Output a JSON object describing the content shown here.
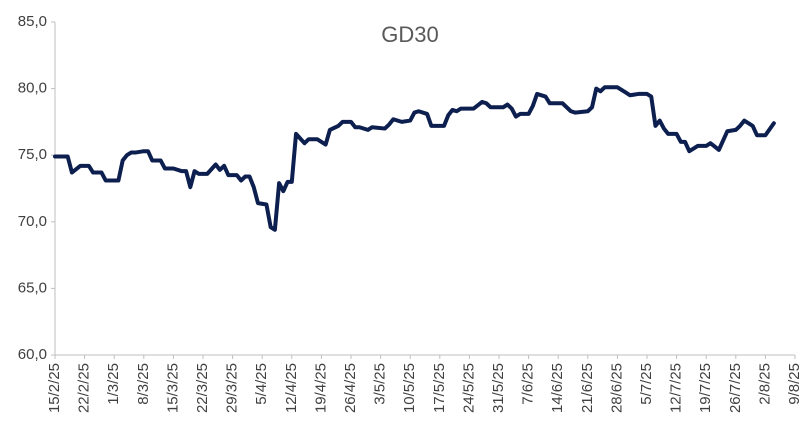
{
  "chart_data": {
    "type": "line",
    "title": "GD30",
    "x": [
      "2025-02-15",
      "2025-02-18",
      "2025-02-19",
      "2025-02-21",
      "2025-02-23",
      "2025-02-24",
      "2025-02-26",
      "2025-02-27",
      "2025-03-02",
      "2025-03-03",
      "2025-03-04",
      "2025-03-05",
      "2025-03-06",
      "2025-03-08",
      "2025-03-09",
      "2025-03-10",
      "2025-03-12",
      "2025-03-13",
      "2025-03-15",
      "2025-03-17",
      "2025-03-18",
      "2025-03-19",
      "2025-03-20",
      "2025-03-21",
      "2025-03-23",
      "2025-03-25",
      "2025-03-26",
      "2025-03-27",
      "2025-03-28",
      "2025-03-30",
      "2025-03-31",
      "2025-04-01",
      "2025-04-02",
      "2025-04-03",
      "2025-04-04",
      "2025-04-06",
      "2025-04-07",
      "2025-04-08",
      "2025-04-09",
      "2025-04-10",
      "2025-04-11",
      "2025-04-12",
      "2025-04-13",
      "2025-04-15",
      "2025-04-16",
      "2025-04-18",
      "2025-04-20",
      "2025-04-21",
      "2025-04-23",
      "2025-04-24",
      "2025-04-26",
      "2025-04-27",
      "2025-04-28",
      "2025-04-30",
      "2025-05-01",
      "2025-05-04",
      "2025-05-05",
      "2025-05-06",
      "2025-05-08",
      "2025-05-10",
      "2025-05-11",
      "2025-05-12",
      "2025-05-14",
      "2025-05-15",
      "2025-05-18",
      "2025-05-19",
      "2025-05-20",
      "2025-05-21",
      "2025-05-22",
      "2025-05-25",
      "2025-05-27",
      "2025-05-28",
      "2025-05-29",
      "2025-06-01",
      "2025-06-02",
      "2025-06-03",
      "2025-06-04",
      "2025-06-05",
      "2025-06-07",
      "2025-06-08",
      "2025-06-09",
      "2025-06-11",
      "2025-06-12",
      "2025-06-15",
      "2025-06-17",
      "2025-06-18",
      "2025-06-21",
      "2025-06-22",
      "2025-06-23",
      "2025-06-24",
      "2025-06-25",
      "2025-06-28",
      "2025-06-30",
      "2025-07-01",
      "2025-07-03",
      "2025-07-05",
      "2025-07-06",
      "2025-07-07",
      "2025-07-08",
      "2025-07-09",
      "2025-07-10",
      "2025-07-12",
      "2025-07-13",
      "2025-07-14",
      "2025-07-15",
      "2025-07-17",
      "2025-07-19",
      "2025-07-20",
      "2025-07-22",
      "2025-07-24",
      "2025-07-26",
      "2025-07-27",
      "2025-07-28",
      "2025-07-30",
      "2025-07-31",
      "2025-08-02",
      "2025-08-04"
    ],
    "series": [
      {
        "name": "GD30",
        "color": "#0d1f4f",
        "values": [
          74.9,
          74.9,
          73.7,
          74.2,
          74.2,
          73.7,
          73.7,
          73.1,
          73.1,
          74.6,
          75.0,
          75.2,
          75.2,
          75.3,
          75.3,
          74.6,
          74.6,
          74.0,
          74.0,
          73.8,
          73.8,
          72.6,
          73.8,
          73.6,
          73.6,
          74.3,
          73.9,
          74.2,
          73.5,
          73.5,
          73.1,
          73.4,
          73.4,
          72.6,
          71.4,
          71.3,
          69.6,
          69.4,
          72.9,
          72.3,
          73.0,
          73.0,
          76.6,
          75.9,
          76.2,
          76.2,
          75.8,
          76.9,
          77.2,
          77.5,
          77.5,
          77.1,
          77.1,
          76.9,
          77.1,
          77.0,
          77.3,
          77.7,
          77.5,
          77.6,
          78.2,
          78.3,
          78.1,
          77.2,
          77.2,
          78.0,
          78.4,
          78.3,
          78.5,
          78.5,
          79.0,
          78.9,
          78.6,
          78.6,
          78.8,
          78.5,
          77.9,
          78.1,
          78.1,
          78.7,
          79.6,
          79.4,
          78.9,
          78.9,
          78.3,
          78.2,
          78.3,
          78.6,
          80.0,
          79.8,
          80.1,
          80.1,
          79.7,
          79.5,
          79.6,
          79.6,
          79.4,
          77.2,
          77.6,
          77.0,
          76.6,
          76.6,
          76.0,
          76.0,
          75.3,
          75.7,
          75.7,
          75.9,
          75.4,
          76.8,
          76.9,
          77.2,
          77.6,
          77.2,
          76.5,
          76.5,
          77.4
        ]
      }
    ],
    "xlim": [
      "2025-02-15",
      "2025-08-09"
    ],
    "xticks": [
      {
        "value": "2025-02-15",
        "label": "15/2/25"
      },
      {
        "value": "2025-02-22",
        "label": "22/2/25"
      },
      {
        "value": "2025-03-01",
        "label": "1/3/25"
      },
      {
        "value": "2025-03-08",
        "label": "8/3/25"
      },
      {
        "value": "2025-03-15",
        "label": "15/3/25"
      },
      {
        "value": "2025-03-22",
        "label": "22/3/25"
      },
      {
        "value": "2025-03-29",
        "label": "29/3/25"
      },
      {
        "value": "2025-04-05",
        "label": "5/4/25"
      },
      {
        "value": "2025-04-12",
        "label": "12/4/25"
      },
      {
        "value": "2025-04-19",
        "label": "19/4/25"
      },
      {
        "value": "2025-04-26",
        "label": "26/4/25"
      },
      {
        "value": "2025-05-03",
        "label": "3/5/25"
      },
      {
        "value": "2025-05-10",
        "label": "10/5/25"
      },
      {
        "value": "2025-05-17",
        "label": "17/5/25"
      },
      {
        "value": "2025-05-24",
        "label": "24/5/25"
      },
      {
        "value": "2025-05-31",
        "label": "31/5/25"
      },
      {
        "value": "2025-06-07",
        "label": "7/6/25"
      },
      {
        "value": "2025-06-14",
        "label": "14/6/25"
      },
      {
        "value": "2025-06-21",
        "label": "21/6/25"
      },
      {
        "value": "2025-06-28",
        "label": "28/6/25"
      },
      {
        "value": "2025-07-05",
        "label": "5/7/25"
      },
      {
        "value": "2025-07-12",
        "label": "12/7/25"
      },
      {
        "value": "2025-07-19",
        "label": "19/7/25"
      },
      {
        "value": "2025-07-26",
        "label": "26/7/25"
      },
      {
        "value": "2025-08-02",
        "label": "2/8/25"
      },
      {
        "value": "2025-08-09",
        "label": "9/8/25"
      }
    ],
    "ylim": [
      60,
      85
    ],
    "yticks": [
      {
        "value": 60,
        "label": "60,0"
      },
      {
        "value": 65,
        "label": "65,0"
      },
      {
        "value": 70,
        "label": "70,0"
      },
      {
        "value": 75,
        "label": "75,0"
      },
      {
        "value": 80,
        "label": "80,0"
      },
      {
        "value": 85,
        "label": "85,0"
      }
    ],
    "grid": false
  }
}
